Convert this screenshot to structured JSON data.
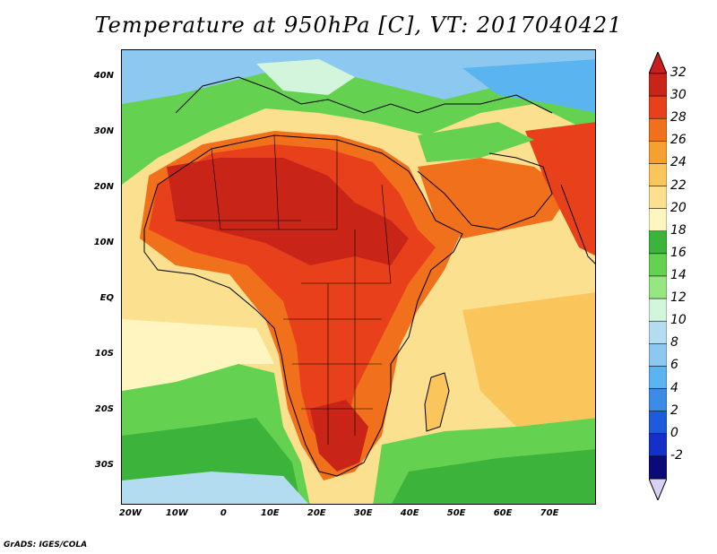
{
  "title": "Temperature at 950hPa [C], VT: 2017040421",
  "credit": "GrADS: IGES/COLA",
  "map": {
    "lon_range": [
      -22,
      80
    ],
    "lat_range": [
      -37,
      45
    ],
    "lat_labels": [
      "40N",
      "30N",
      "20N",
      "10N",
      "EQ",
      "10S",
      "20S",
      "30S"
    ],
    "lat_values": [
      40,
      30,
      20,
      10,
      0,
      -10,
      -20,
      -30
    ],
    "lon_labels": [
      "20W",
      "10W",
      "0",
      "10E",
      "20E",
      "30E",
      "40E",
      "50E",
      "60E",
      "70E"
    ],
    "lon_values": [
      -20,
      -10,
      0,
      10,
      20,
      30,
      40,
      50,
      60,
      70
    ]
  },
  "colorbar": {
    "levels": [
      "32",
      "30",
      "28",
      "26",
      "24",
      "22",
      "20",
      "18",
      "16",
      "14",
      "12",
      "10",
      "8",
      "6",
      "4",
      "2",
      "0",
      "-2"
    ],
    "colors": [
      "#c82418",
      "#e8401a",
      "#f0701c",
      "#f5a030",
      "#fac55a",
      "#fbe090",
      "#fff5c0",
      "#3cb43c",
      "#64d250",
      "#96e682",
      "#d2f5dc",
      "#b4dcf0",
      "#8cc8f0",
      "#5ab4f0",
      "#3c8ce6",
      "#1e5adc",
      "#1430c8",
      "#0a0a78"
    ],
    "over_color": "#c81e1e",
    "under_color": "#d8d0f5"
  },
  "colors": {
    "ocean_warm": "#fbe090",
    "ocean_pale": "#fff5c0",
    "land_hot": "#c82418",
    "land_warm": "#e8401a",
    "cool_green": "#64d250",
    "deep_green": "#3cb43c",
    "cold_blue": "#8cc8f0"
  }
}
